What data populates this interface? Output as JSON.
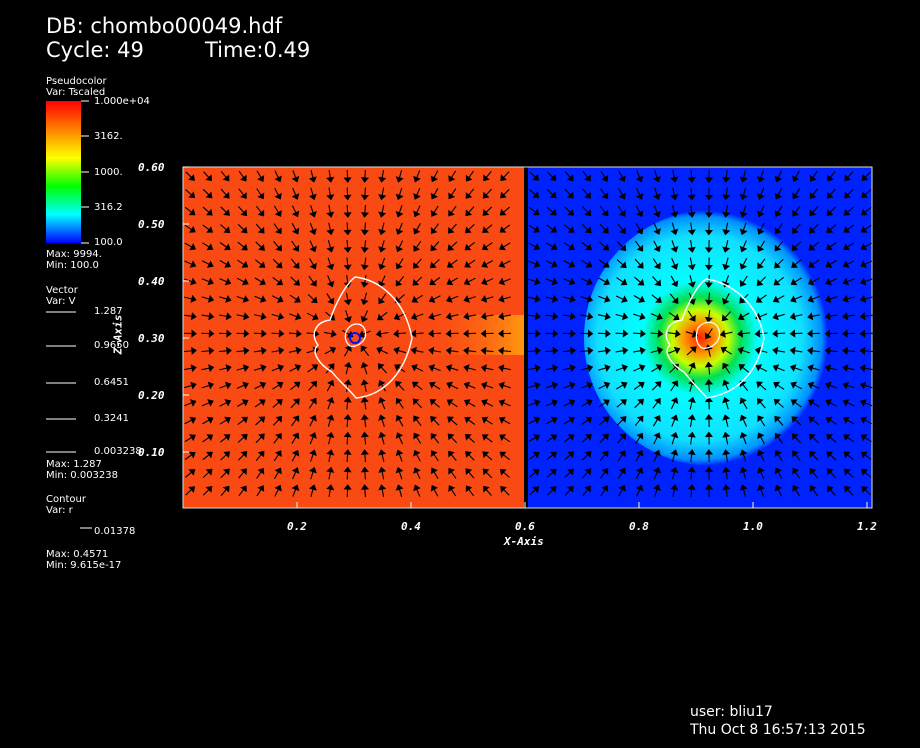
{
  "header": {
    "db_label": "DB: chombo00049.hdf",
    "cycle_label": "Cycle: 49",
    "time_label": "Time:0.49"
  },
  "legend_pseudocolor": {
    "title": "Pseudocolor",
    "var": "Var: Tscaled",
    "ticks": [
      "1.000e+04",
      "3162.",
      "1000.",
      "316.2",
      "100.0"
    ],
    "max": "Max: 9994.",
    "min": "Min: 100.0",
    "colors": [
      "#ff0000",
      "#ff8000",
      "#ffff00",
      "#00ff00",
      "#00ffff",
      "#0000ff"
    ]
  },
  "legend_vector": {
    "title": "Vector",
    "var": "Var: V",
    "ticks": [
      "1.287",
      "0.9650",
      "0.6451",
      "0.3241",
      "0.003238"
    ],
    "max": "Max: 1.287",
    "min": "Min: 0.003238"
  },
  "legend_contour": {
    "title": "Contour",
    "var": "Var: r",
    "ticks": [
      "0.01378"
    ],
    "max": "Max: 0.4571",
    "min": "Min: 9.615e-17"
  },
  "plot": {
    "x_axis_title": "X-Axis",
    "y_axis_title": "Z-Axis",
    "x_ticks": [
      "0.2",
      "0.4",
      "0.6",
      "0.8",
      "1.0",
      "1.2"
    ],
    "y_ticks": [
      "0.60",
      "0.50",
      "0.40",
      "0.30",
      "0.20",
      "0.10"
    ],
    "left_panel_color": "#fa4a14",
    "right_panel_color": "#0022ff"
  },
  "footer": {
    "user": "user: bliu17",
    "date": "Thu Oct  8 16:57:13 2015"
  }
}
